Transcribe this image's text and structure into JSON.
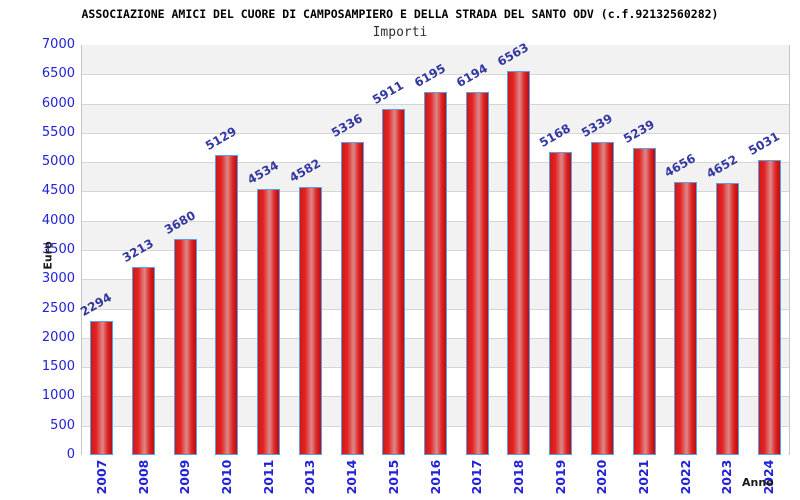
{
  "header": {
    "title": "ASSOCIAZIONE AMICI DEL CUORE DI CAMPOSAMPIERO E DELLA STRADA DEL SANTO ODV (c.f.92132560282)",
    "subtitle": "Importi"
  },
  "chart_data": {
    "type": "bar",
    "title": "ASSOCIAZIONE AMICI DEL CUORE DI CAMPOSAMPIERO E DELLA STRADA DEL SANTO ODV (c.f.92132560282)",
    "subtitle": "Importi",
    "xlabel": "Anno",
    "ylabel": "Euro",
    "categories": [
      "2007",
      "2008",
      "2009",
      "2010",
      "2011",
      "2013",
      "2014",
      "2015",
      "2016",
      "2017",
      "2018",
      "2019",
      "2020",
      "2021",
      "2022",
      "2023",
      "2024"
    ],
    "values": [
      2294,
      3213,
      3680,
      5129,
      4534,
      4582,
      5336,
      5911,
      6195,
      6194,
      6563,
      5168,
      5339,
      5239,
      4656,
      4652,
      5031
    ],
    "ylim": [
      0,
      7000
    ],
    "ytick_step": 500,
    "yticks": [
      0,
      500,
      1000,
      1500,
      2000,
      2500,
      3000,
      3500,
      4000,
      4500,
      5000,
      5500,
      6000,
      6500,
      7000
    ],
    "grid": "horizontal-bands",
    "legend": "none",
    "bar_value_labels_rotation_deg": -30,
    "x_tick_rotation_deg": -90,
    "style": {
      "tick_label_color": "#2222d8",
      "value_label_color": "#3337a0",
      "bar_border_color": "#58a0e8",
      "bar_gradient": [
        "#cf1a1a",
        "#e42222",
        "#dd8888",
        "#e02020",
        "#b31212"
      ],
      "band_dark": "#f2f2f2",
      "band_light": "#ffffff",
      "grid_line_color": "#d6d6d6",
      "title_color": "#000000",
      "subtitle_color": "#333333",
      "axis_title_color": "#1a1a1a"
    }
  }
}
